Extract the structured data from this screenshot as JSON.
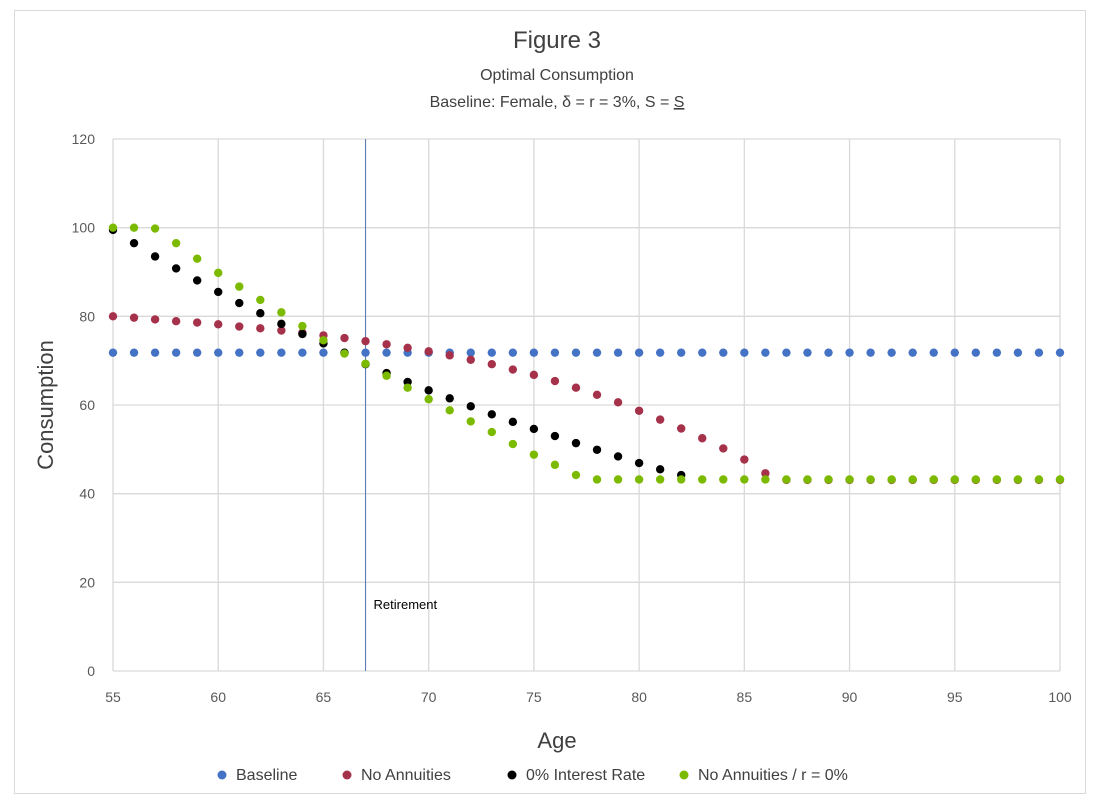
{
  "chart_data": {
    "type": "scatter",
    "title": "Figure 3",
    "subtitle_lines": [
      "Optimal Consumption",
      "Baseline: Female, δ = r = 3%, S = ",
      "S"
    ],
    "xlabel": "Age",
    "ylabel": "Consumption",
    "xlim": [
      55,
      100
    ],
    "ylim": [
      0,
      120
    ],
    "xticks": [
      55,
      60,
      65,
      70,
      75,
      80,
      85,
      90,
      95,
      100
    ],
    "yticks": [
      0,
      20,
      40,
      60,
      80,
      100,
      120
    ],
    "grid": true,
    "legend_position": "bottom",
    "annotation": {
      "text": "Retirement",
      "x": 67
    },
    "x": [
      55,
      56,
      57,
      58,
      59,
      60,
      61,
      62,
      63,
      64,
      65,
      66,
      67,
      68,
      69,
      70,
      71,
      72,
      73,
      74,
      75,
      76,
      77,
      78,
      79,
      80,
      81,
      82,
      83,
      84,
      85,
      86,
      87,
      88,
      89,
      90,
      91,
      92,
      93,
      94,
      95,
      96,
      97,
      98,
      99,
      100
    ],
    "series": [
      {
        "name": "Baseline",
        "color": "#4472c4",
        "values": [
          71.8,
          71.8,
          71.8,
          71.8,
          71.8,
          71.8,
          71.8,
          71.8,
          71.8,
          71.8,
          71.8,
          71.8,
          71.8,
          71.8,
          71.8,
          71.8,
          71.8,
          71.8,
          71.8,
          71.8,
          71.8,
          71.8,
          71.8,
          71.8,
          71.8,
          71.8,
          71.8,
          71.8,
          71.8,
          71.8,
          71.8,
          71.8,
          71.8,
          71.8,
          71.8,
          71.8,
          71.8,
          71.8,
          71.8,
          71.8,
          71.8,
          71.8,
          71.8,
          71.8,
          71.8,
          71.8
        ]
      },
      {
        "name": "No Annuities",
        "color": "#a5324a",
        "values": [
          80.0,
          79.7,
          79.3,
          78.9,
          78.6,
          78.2,
          77.7,
          77.3,
          76.8,
          76.3,
          75.7,
          75.1,
          74.4,
          73.7,
          72.9,
          72.1,
          71.2,
          70.2,
          69.2,
          68.0,
          66.8,
          65.4,
          63.9,
          62.3,
          60.6,
          58.7,
          56.7,
          54.7,
          52.5,
          50.2,
          47.7,
          44.6,
          43.1,
          43.1,
          43.1,
          43.1,
          43.1,
          43.1,
          43.1,
          43.1,
          43.1,
          43.1,
          43.1,
          43.1,
          43.1,
          43.1
        ]
      },
      {
        "name": "0% Interest Rate",
        "color": "#000000",
        "values": [
          99.5,
          96.5,
          93.5,
          90.8,
          88.1,
          85.5,
          83.0,
          80.7,
          78.3,
          76.0,
          73.9,
          71.8,
          69.2,
          67.2,
          65.2,
          63.3,
          61.5,
          59.7,
          57.9,
          56.2,
          54.6,
          53.0,
          51.4,
          49.9,
          48.4,
          46.9,
          45.5,
          44.2,
          null,
          null,
          null,
          null,
          null,
          null,
          null,
          null,
          null,
          null,
          null,
          null,
          null,
          null,
          null,
          null,
          null,
          null
        ]
      },
      {
        "name": "No Annuities / r = 0%",
        "color": "#7cba00",
        "values": [
          100.0,
          100.0,
          99.8,
          96.5,
          93.0,
          89.8,
          86.7,
          83.7,
          80.9,
          77.8,
          74.6,
          71.6,
          69.3,
          66.6,
          63.9,
          61.3,
          58.8,
          56.3,
          53.9,
          51.2,
          48.8,
          46.5,
          44.2,
          43.2,
          43.2,
          43.2,
          43.2,
          43.2,
          43.2,
          43.2,
          43.2,
          43.2,
          43.2,
          43.2,
          43.2,
          43.2,
          43.2,
          43.2,
          43.2,
          43.2,
          43.2,
          43.2,
          43.2,
          43.2,
          43.2,
          43.2
        ]
      }
    ]
  }
}
